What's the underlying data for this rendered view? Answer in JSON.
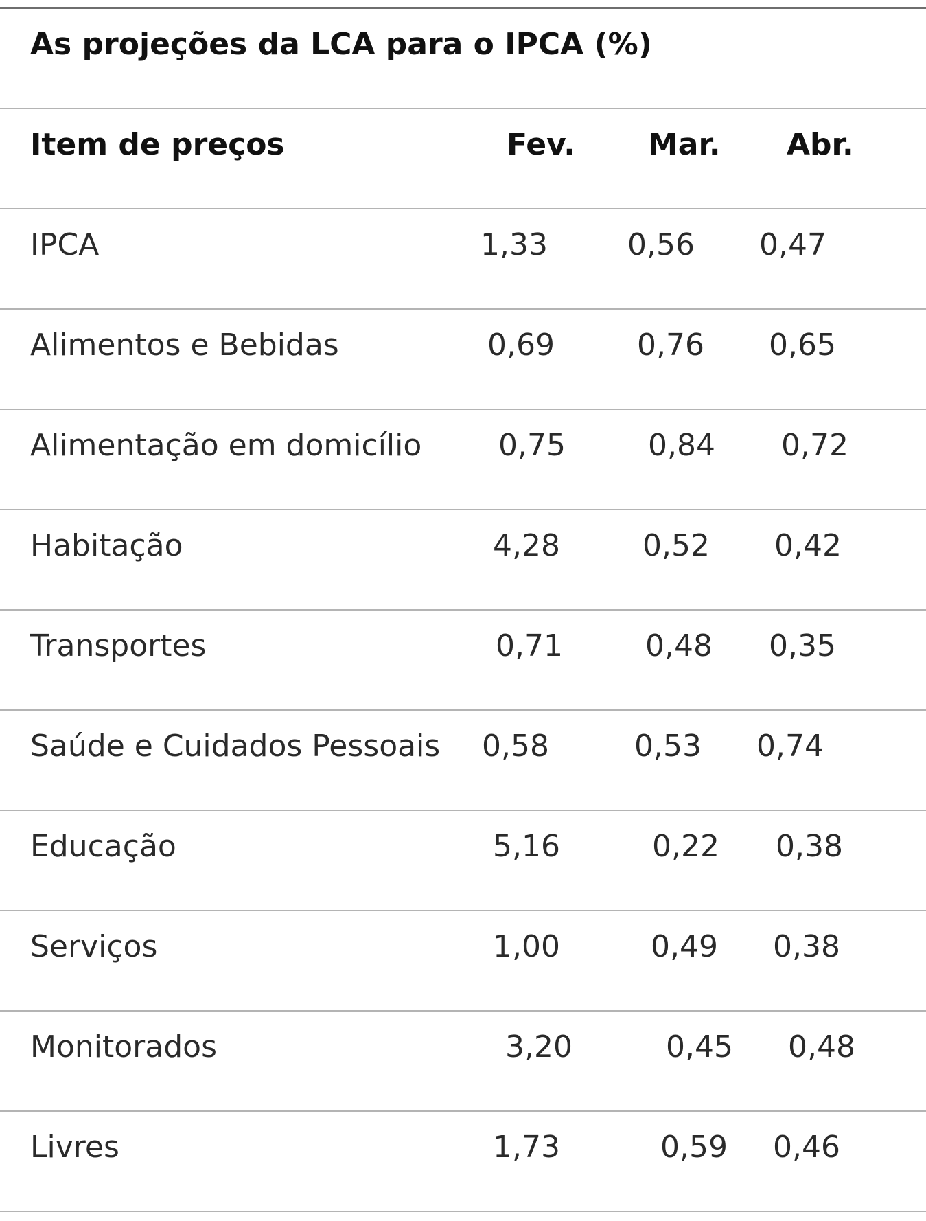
{
  "title": "As projeções da LCA para o IPCA (%)",
  "columns": {
    "item": "Item de preços",
    "fev": "Fev.",
    "mar": "Mar.",
    "abr": "Abr."
  },
  "rows": [
    {
      "item": "IPCA",
      "fev": "1,33",
      "mar": "0,56",
      "abr": "0,47"
    },
    {
      "item": "Alimentos e Bebidas",
      "fev": "0,69",
      "mar": "0,76",
      "abr": "0,65"
    },
    {
      "item": "Alimentação em domicílio",
      "fev": "0,75",
      "mar": "0,84",
      "abr": "0,72"
    },
    {
      "item": "Habitação",
      "fev": "4,28",
      "mar": "0,52",
      "abr": "0,42"
    },
    {
      "item": "Transportes",
      "fev": "0,71",
      "mar": "0,48",
      "abr": "0,35"
    },
    {
      "item": "Saúde e Cuidados Pessoais",
      "fev": "0,58",
      "mar": "0,53",
      "abr": "0,74"
    },
    {
      "item": "Educação",
      "fev": "5,16",
      "mar": "0,22",
      "abr": "0,38"
    },
    {
      "item": "Serviços",
      "fev": "1,00",
      "mar": "0,49",
      "abr": "0,38"
    },
    {
      "item": "Monitorados",
      "fev": "3,20",
      "mar": "0,45",
      "abr": "0,48"
    },
    {
      "item": "Livres",
      "fev": "1,73",
      "mar": "0,59",
      "abr": "0,46"
    }
  ]
}
